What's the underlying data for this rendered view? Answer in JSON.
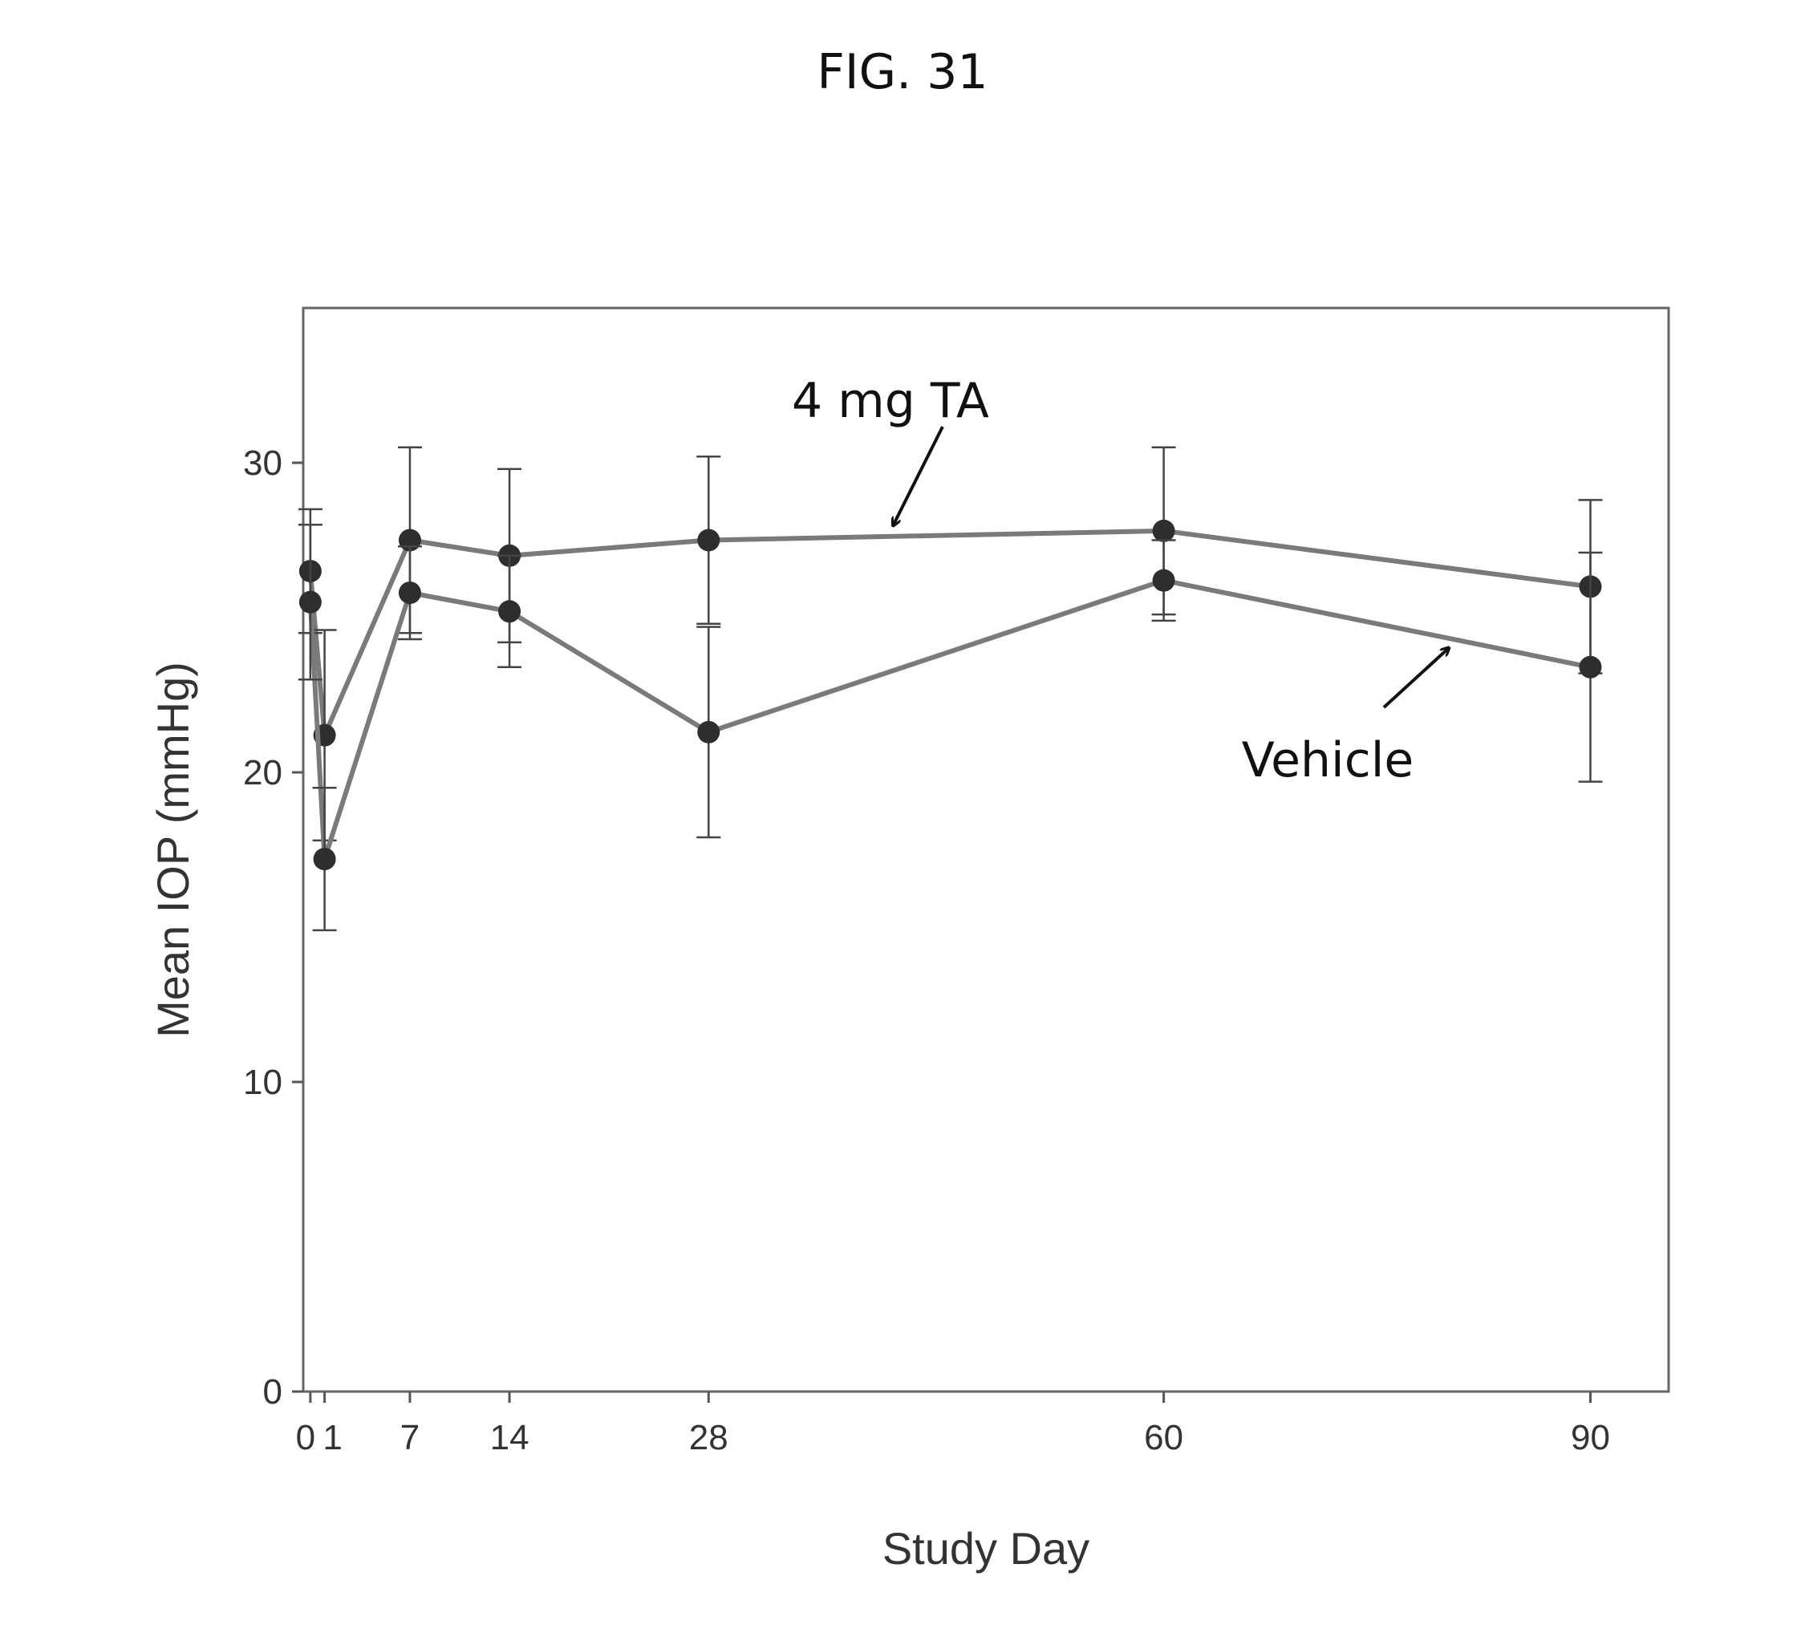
{
  "figure_label": "FIG. 31",
  "chart_data": {
    "type": "line",
    "title": "",
    "xlabel": "Study Day",
    "ylabel": "Mean IOP (mmHg)",
    "xlim": [
      -0.5,
      95.5
    ],
    "ylim": [
      0,
      35
    ],
    "xticks": [
      0,
      1,
      7,
      14,
      28,
      60,
      90
    ],
    "xtick_labels": [
      "0",
      "1",
      "7",
      "14",
      "28",
      "60",
      "90"
    ],
    "yticks": [
      0,
      10,
      20,
      30
    ],
    "grid": false,
    "legend": "none",
    "series": [
      {
        "label": "4 mg TA",
        "color": "#7a7a7a",
        "points": [
          {
            "x": 0,
            "y": 26.5,
            "err": 2.0
          },
          {
            "x": 1,
            "y": 21.2,
            "err": 3.4
          },
          {
            "x": 7,
            "y": 27.5,
            "err": 3.0
          },
          {
            "x": 14,
            "y": 27.0,
            "err": 2.8
          },
          {
            "x": 28,
            "y": 27.5,
            "err": 2.7
          },
          {
            "x": 60,
            "y": 27.8,
            "err": 2.7
          },
          {
            "x": 90,
            "y": 26.0,
            "err": 2.8
          }
        ]
      },
      {
        "label": "Vehicle",
        "color": "#7a7a7a",
        "points": [
          {
            "x": 0,
            "y": 25.5,
            "err": 2.5
          },
          {
            "x": 1,
            "y": 17.2,
            "err": 2.3
          },
          {
            "x": 7,
            "y": 25.8,
            "err": 1.5
          },
          {
            "x": 14,
            "y": 25.2,
            "err": 1.8
          },
          {
            "x": 28,
            "y": 21.3,
            "err": 3.4
          },
          {
            "x": 60,
            "y": 26.2,
            "err": 1.3
          },
          {
            "x": 90,
            "y": 23.4,
            "err": 3.7
          }
        ]
      }
    ],
    "annotations": [
      {
        "text": "4 mg TA",
        "arrow_to": {
          "x": 41,
          "y": 28.0
        }
      },
      {
        "text": "Vehicle",
        "arrow_to": {
          "x": 80,
          "y": 24.0
        }
      }
    ]
  }
}
